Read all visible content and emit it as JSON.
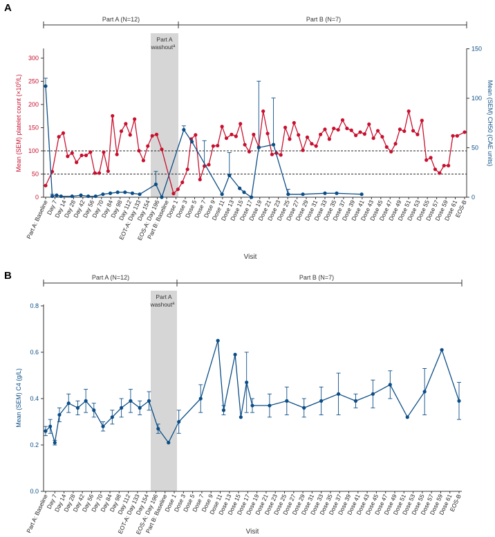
{
  "colors": {
    "red": "#c8102e",
    "blue": "#0b4d86",
    "washout": "#d6d6d6",
    "axis": "#333333"
  },
  "visit_labels": [
    "Part A: Baseline",
    "Day 7",
    "Day 14",
    "Day 28",
    "Day 42",
    "Day 56",
    "Day 70",
    "Day 84",
    "Day 98",
    "Day 112",
    "EOT-A: Day 133",
    "Day 154",
    "EOS-A: Day 196",
    "Part B: Baseline",
    "Dose 1",
    "Dose 3",
    "Dose 5",
    "Dose 7",
    "Dose 9",
    "Dose 11",
    "Dose 13",
    "Dose 15",
    "Dose 17",
    "Dose 19",
    "Dose 21",
    "Dose 23",
    "Dose 25",
    "Dose 27",
    "Dose 29",
    "Dose 31",
    "Dose 33",
    "Dose 35",
    "Dose 37",
    "Dose 39",
    "Dose 41",
    "Dose 43",
    "Dose 45",
    "Dose 47",
    "Dose 49",
    "Dose 51",
    "Dose 53",
    "Dose 55",
    "Dose 57",
    "Dose 59",
    "Dose 61",
    "EOS-B"
  ],
  "chart_data": [
    {
      "panel": "A",
      "type": "line",
      "x_label": "Visit",
      "y_left_label_prefix": "Mean (SEM) platelet count (×10",
      "y_left_label_sup": "9",
      "y_left_label_suffix": "/L)",
      "y_right_label": "Mean (SEM) CH50 (CAE units)",
      "y_left_lim": [
        0,
        320
      ],
      "y_left_ticks": [
        0,
        50,
        100,
        150,
        200,
        250,
        300
      ],
      "y_right_lim": [
        0,
        150
      ],
      "y_right_ticks": [
        0,
        50,
        100,
        150
      ],
      "reference_lines": [
        50,
        100
      ],
      "part_a_label": "Part A (N=12)",
      "part_b_label": "Part B (N=7)",
      "washout_label_1": "Part A",
      "washout_label_2": "washout",
      "washout_sup": "a",
      "washout_range_visits": [
        10.5,
        12.5
      ],
      "platelet": [
        [
          0,
          25
        ],
        [
          0.45,
          55
        ],
        [
          0.9,
          130
        ],
        [
          1.2,
          138
        ],
        [
          1.5,
          88
        ],
        [
          1.8,
          95
        ],
        [
          2.1,
          75
        ],
        [
          2.45,
          90
        ],
        [
          2.75,
          90
        ],
        [
          3.05,
          97
        ],
        [
          3.35,
          52
        ],
        [
          3.65,
          52
        ],
        [
          3.95,
          97
        ],
        [
          4.25,
          56
        ],
        [
          4.55,
          175
        ],
        [
          4.85,
          92
        ],
        [
          5.15,
          142
        ],
        [
          5.45,
          158
        ],
        [
          5.75,
          134
        ],
        [
          6.05,
          168
        ],
        [
          6.35,
          100
        ],
        [
          6.65,
          79
        ],
        [
          6.95,
          110
        ],
        [
          7.25,
          132
        ],
        [
          7.55,
          135
        ],
        [
          7.9,
          103
        ],
        [
          8.7,
          8
        ],
        [
          9.0,
          17
        ],
        [
          9.3,
          32
        ],
        [
          9.65,
          60
        ],
        [
          9.9,
          125
        ],
        [
          10.2,
          134
        ],
        [
          10.5,
          38
        ],
        [
          10.8,
          67
        ],
        [
          11.1,
          70
        ],
        [
          11.4,
          110
        ],
        [
          11.7,
          111
        ],
        [
          12.0,
          152
        ],
        [
          12.3,
          127
        ],
        [
          12.65,
          135
        ],
        [
          12.95,
          131
        ],
        [
          13.25,
          158
        ],
        [
          13.55,
          113
        ],
        [
          13.85,
          98
        ],
        [
          14.15,
          135
        ],
        [
          14.5,
          108
        ],
        [
          14.8,
          185
        ],
        [
          15.1,
          137
        ],
        [
          15.4,
          92
        ],
        [
          15.7,
          95
        ],
        [
          16.0,
          91
        ],
        [
          16.3,
          150
        ],
        [
          16.6,
          125
        ],
        [
          16.9,
          160
        ],
        [
          17.2,
          134
        ],
        [
          17.5,
          101
        ],
        [
          17.8,
          129
        ],
        [
          18.1,
          115
        ],
        [
          18.4,
          110
        ],
        [
          18.7,
          135
        ],
        [
          19.0,
          146
        ],
        [
          19.3,
          125
        ],
        [
          19.6,
          148
        ],
        [
          19.9,
          145
        ],
        [
          20.2,
          166
        ],
        [
          20.5,
          148
        ],
        [
          20.8,
          144
        ],
        [
          21.1,
          133
        ],
        [
          21.4,
          140
        ],
        [
          21.7,
          136
        ],
        [
          22.0,
          157
        ],
        [
          22.3,
          127
        ],
        [
          22.6,
          143
        ],
        [
          22.9,
          130
        ],
        [
          23.2,
          108
        ],
        [
          23.5,
          98
        ],
        [
          23.8,
          115
        ],
        [
          24.1,
          146
        ],
        [
          24.4,
          142
        ],
        [
          24.7,
          185
        ],
        [
          25.0,
          143
        ],
        [
          25.3,
          135
        ],
        [
          25.6,
          165
        ],
        [
          25.9,
          80
        ],
        [
          26.2,
          85
        ],
        [
          26.5,
          60
        ],
        [
          26.8,
          52
        ],
        [
          27.1,
          68
        ],
        [
          27.4,
          68
        ],
        [
          27.7,
          132
        ],
        [
          28.0,
          132
        ],
        [
          28.5,
          140
        ]
      ],
      "ch50": {
        "points": [
          [
            0,
            112
          ],
          [
            0.45,
            1
          ],
          [
            0.75,
            2
          ],
          [
            1.05,
            1
          ],
          [
            1.8,
            1
          ],
          [
            2.4,
            2
          ],
          [
            2.9,
            1
          ],
          [
            3.4,
            1
          ],
          [
            3.9,
            3
          ],
          [
            4.4,
            4
          ],
          [
            4.9,
            5
          ],
          [
            5.4,
            5
          ],
          [
            5.9,
            4
          ],
          [
            6.4,
            3
          ],
          [
            7.5,
            13
          ],
          [
            7.9,
            0
          ],
          [
            9.4,
            68
          ],
          [
            9.95,
            56
          ],
          [
            12.0,
            3
          ],
          [
            12.5,
            22
          ],
          [
            13.2,
            9
          ],
          [
            13.5,
            5
          ],
          [
            14.0,
            0
          ],
          [
            14.5,
            50
          ],
          [
            15.5,
            53
          ],
          [
            16.5,
            3
          ],
          [
            17.5,
            3
          ],
          [
            19.0,
            4
          ],
          [
            19.8,
            4
          ],
          [
            21.5,
            3
          ]
        ],
        "error_bars": [
          [
            0,
            112,
            120
          ],
          [
            7.5,
            13,
            26
          ],
          [
            10.8,
            30,
            57
          ],
          [
            12.5,
            22,
            45
          ],
          [
            14.5,
            50,
            117
          ],
          [
            15.5,
            53,
            100
          ],
          [
            16.5,
            3,
            8
          ],
          [
            9.4,
            68,
            72
          ],
          [
            0.45,
            1,
            3
          ]
        ]
      }
    },
    {
      "panel": "B",
      "type": "line",
      "x_label": "Visit",
      "y_label": "Mean (SEM) C4 (g/L)",
      "y_lim": [
        0,
        0.8
      ],
      "y_ticks": [
        "0.0",
        "0.2",
        "0.4",
        "0.6",
        "0.8"
      ],
      "part_a_label": "Part A (N=12)",
      "part_b_label": "Part B (N=7)",
      "washout_label_1": "Part A",
      "washout_label_2": "washout",
      "washout_sup": "a",
      "washout_range_visits": [
        10.5,
        12.5
      ],
      "c4": [
        [
          0,
          0.26,
          0.02
        ],
        [
          0.4,
          0.28,
          0.03
        ],
        [
          0.8,
          0.21,
          0.01
        ],
        [
          1.2,
          0.33,
          0.03
        ],
        [
          2.0,
          0.38,
          0.04
        ],
        [
          2.8,
          0.36,
          0.03
        ],
        [
          3.5,
          0.39,
          0.05
        ],
        [
          4.2,
          0.35,
          0.03
        ],
        [
          5.0,
          0.28,
          0.02
        ],
        [
          5.8,
          0.32,
          0.03
        ],
        [
          6.6,
          0.36,
          0.04
        ],
        [
          7.4,
          0.39,
          0.05
        ],
        [
          8.2,
          0.36,
          0.03
        ],
        [
          9.0,
          0.39,
          0.04
        ],
        [
          9.8,
          0.27,
          0.02
        ],
        [
          10.7,
          0.21,
          0
        ],
        [
          11.6,
          0.3,
          0.05
        ],
        [
          13.5,
          0.4,
          0.06
        ],
        [
          15.0,
          0.65,
          0
        ],
        [
          15.5,
          0.35,
          0.02
        ],
        [
          16.5,
          0.59,
          0
        ],
        [
          17.0,
          0.32,
          0
        ],
        [
          17.5,
          0.47,
          0.13
        ],
        [
          18.0,
          0.37,
          0.03
        ],
        [
          19.5,
          0.37,
          0.05
        ],
        [
          21.0,
          0.39,
          0.06
        ],
        [
          22.5,
          0.36,
          0.04
        ],
        [
          24.0,
          0.39,
          0.06
        ],
        [
          25.5,
          0.42,
          0.09
        ],
        [
          27.0,
          0.39,
          0.03
        ],
        [
          28.5,
          0.42,
          0.06
        ],
        [
          30.0,
          0.46,
          0.06
        ],
        [
          31.5,
          0.32,
          0
        ],
        [
          33.0,
          0.43,
          0.1
        ],
        [
          34.5,
          0.61,
          0
        ],
        [
          36.0,
          0.39,
          0.08
        ]
      ]
    }
  ],
  "panel_labels": {
    "a": "A",
    "b": "B"
  }
}
